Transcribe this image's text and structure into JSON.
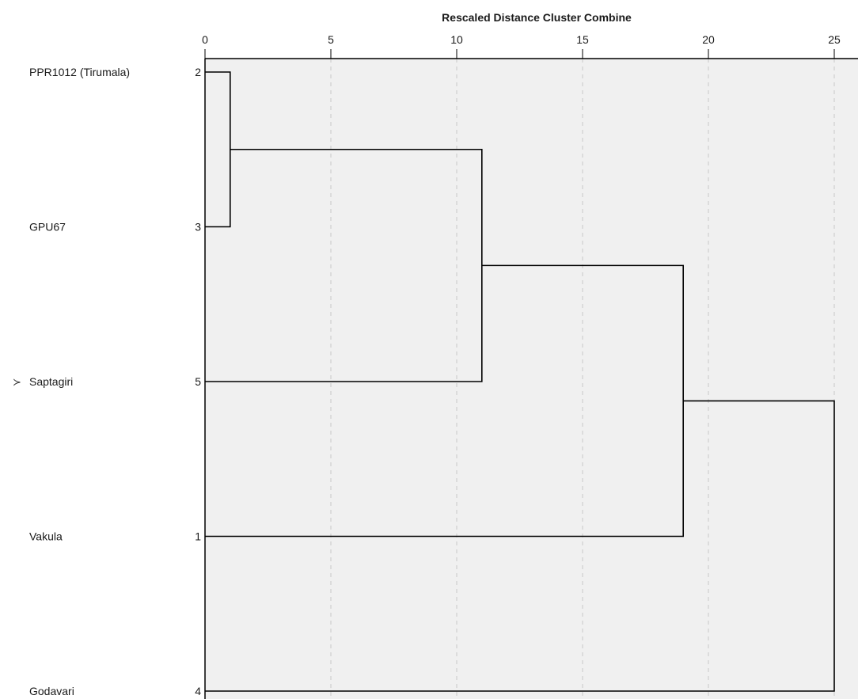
{
  "chart_data": {
    "type": "dendrogram",
    "title": "Rescaled Distance Cluster Combine",
    "x_ticks": [
      0,
      5,
      10,
      15,
      20,
      25
    ],
    "xlim": [
      0,
      25
    ],
    "grid": "vertical-dashed",
    "cases": [
      {
        "label": "PPR1012 (Tirumala)",
        "number": "2"
      },
      {
        "label": "GPU67",
        "number": "3"
      },
      {
        "label": "Saptagiri",
        "number": "5"
      },
      {
        "label": "Vakula",
        "number": "1"
      },
      {
        "label": "Godavari",
        "number": "4"
      }
    ],
    "merges": [
      {
        "members": [
          0,
          1
        ],
        "distance": 1
      },
      {
        "members": [
          "m0",
          2
        ],
        "distance": 11
      },
      {
        "members": [
          "m1",
          3
        ],
        "distance": 19
      },
      {
        "members": [
          "m2",
          4
        ],
        "distance": 25
      }
    ],
    "marker": {
      "row": 2,
      "symbol": "≻"
    },
    "colors": {
      "plot_bg": "#f0f0f0",
      "line": "#000000",
      "grid": "#c8c8c8"
    }
  }
}
